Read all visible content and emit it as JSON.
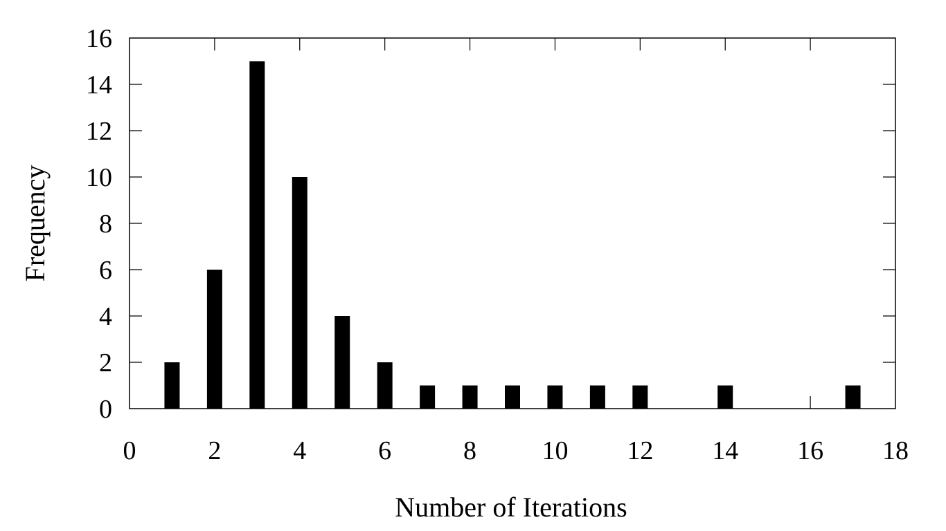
{
  "chart_data": {
    "type": "bar",
    "title": "",
    "xlabel": "Number of Iterations",
    "ylabel": "Frequency",
    "xlim": [
      0,
      18
    ],
    "ylim": [
      0,
      16
    ],
    "x_ticks": [
      0,
      2,
      4,
      6,
      8,
      10,
      12,
      14,
      16,
      18
    ],
    "y_ticks": [
      0,
      2,
      4,
      6,
      8,
      10,
      12,
      14,
      16
    ],
    "grid": false,
    "legend": "none",
    "bar_color": "#000000",
    "series": [
      {
        "x": [
          1,
          2,
          3,
          4,
          5,
          6,
          7,
          8,
          9,
          10,
          11,
          12,
          14,
          17
        ],
        "values": [
          2,
          6,
          15,
          10,
          4,
          2,
          1,
          1,
          1,
          1,
          1,
          1,
          1,
          1
        ]
      }
    ]
  }
}
